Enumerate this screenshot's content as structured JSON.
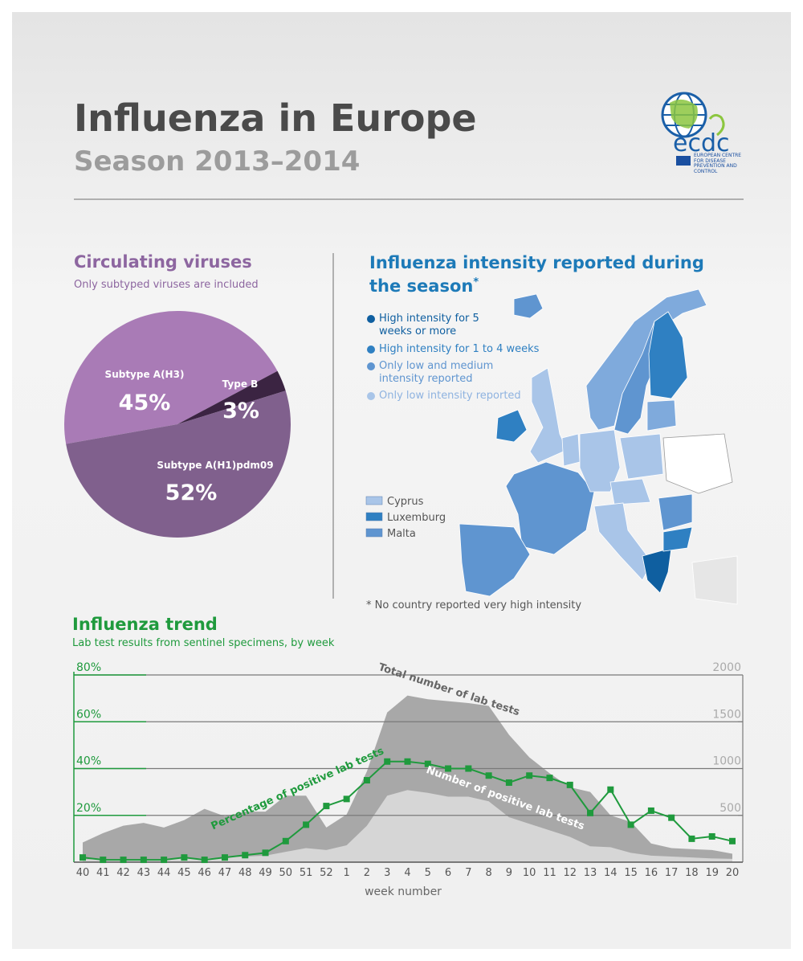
{
  "header": {
    "title": "Influenza in Europe",
    "subtitle": "Season 2013–2014"
  },
  "logo": {
    "name": "ecdc",
    "full_name": "EUROPEAN CENTRE FOR DISEASE PREVENTION AND CONTROL"
  },
  "map": {
    "title": "Influenza intensity reported during the season",
    "title_note": "*",
    "legend": [
      {
        "label": "High intensity for 5 weeks or more",
        "color": "#0f5fa0"
      },
      {
        "label": "High intensity for 1 to 4 weeks",
        "color": "#2f80c2"
      },
      {
        "label": "Only low and medium intensity reported",
        "color": "#5f95d0"
      },
      {
        "label": "Only low intensity reported",
        "color": "#a9c5e8"
      }
    ],
    "small_countries": [
      {
        "label": "Cyprus",
        "color": "#a9c5e8"
      },
      {
        "label": "Luxemburg",
        "color": "#2f80c2"
      },
      {
        "label": "Malta",
        "color": "#5f95d0"
      }
    ],
    "footnote": "* No country reported very high intensity"
  },
  "chart_data": [
    {
      "type": "pie",
      "title": "Circulating viruses",
      "subtitle": "Only subtyped viruses are included",
      "categories": [
        "Subtype A(H3)",
        "Type B",
        "Subtype A(H1)pdm09"
      ],
      "values": [
        45,
        3,
        52
      ],
      "value_labels": [
        "45%",
        "3%",
        "52%"
      ],
      "colors": [
        "#a97bb6",
        "#3b2442",
        "#80608d"
      ]
    },
    {
      "type": "combo",
      "title": "Influenza trend",
      "subtitle": "Lab test results from sentinel specimens, by week",
      "x_label": "week number",
      "categories": [
        "40",
        "41",
        "42",
        "43",
        "44",
        "45",
        "46",
        "47",
        "48",
        "49",
        "50",
        "51",
        "52",
        "1",
        "2",
        "3",
        "4",
        "5",
        "6",
        "7",
        "8",
        "9",
        "10",
        "11",
        "12",
        "13",
        "14",
        "15",
        "16",
        "17",
        "18",
        "19",
        "20"
      ],
      "ylim": [
        0,
        80
      ],
      "yticks": [
        {
          "value": 20,
          "label": "20%"
        },
        {
          "value": 40,
          "label": "40%"
        },
        {
          "value": 60,
          "label": "60%"
        },
        {
          "value": 80,
          "label": "80%"
        }
      ],
      "y2lim": [
        0,
        2000
      ],
      "y2ticks": [
        500,
        1000,
        1500,
        2000
      ],
      "grid": true,
      "series": [
        {
          "name": "Total number of lab tests",
          "type": "area",
          "axis": "y2",
          "color": "#a8a8a8",
          "values": [
            210,
            310,
            390,
            420,
            370,
            450,
            570,
            490,
            540,
            540,
            710,
            710,
            370,
            510,
            970,
            1600,
            1780,
            1740,
            1720,
            1700,
            1670,
            1360,
            1120,
            950,
            800,
            750,
            500,
            430,
            200,
            150,
            140,
            130,
            90
          ]
        },
        {
          "name": "Number of positive lab tests",
          "type": "area",
          "axis": "y2",
          "color": "#d6d6d6",
          "values": [
            30,
            30,
            30,
            30,
            30,
            40,
            40,
            50,
            60,
            70,
            110,
            150,
            130,
            180,
            390,
            710,
            770,
            740,
            700,
            700,
            650,
            480,
            410,
            340,
            270,
            170,
            160,
            100,
            70,
            60,
            50,
            40,
            35
          ]
        },
        {
          "name": "Percentage of positive lab tests",
          "type": "line",
          "color": "#1f9a3d",
          "values": [
            2,
            1,
            1,
            1,
            1,
            2,
            1,
            2,
            3,
            4,
            9,
            16,
            24,
            27,
            35,
            43,
            43,
            42,
            40,
            40,
            37,
            34,
            37,
            36,
            33,
            21,
            31,
            16,
            22,
            19,
            10,
            11,
            9
          ]
        }
      ]
    }
  ]
}
